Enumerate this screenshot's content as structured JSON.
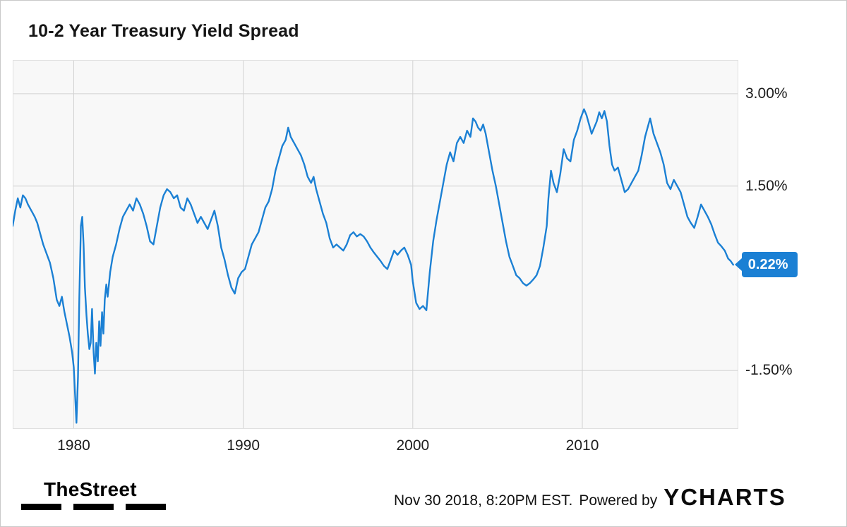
{
  "colors": {
    "accent": "#1b80d4"
  },
  "badge": {
    "label": "0.22%"
  },
  "footer": {
    "brand": "TheStreet",
    "timestamp": "Nov 30 2018, 8:20PM EST.",
    "powered_by": "Powered by",
    "provider": "YCHARTS"
  },
  "chart_data": {
    "type": "line",
    "title": "10-2 Year Treasury Yield Spread",
    "series_name": "10-2 Year Treasury Yield Spread",
    "line_color": "#1b80d4",
    "legend": "none",
    "grid": "on",
    "x_range": [
      1976.4,
      2019.2
    ],
    "y_range": [
      -2.45,
      3.55
    ],
    "x_ticks": [
      {
        "value": 1980,
        "label": "1980"
      },
      {
        "value": 1990,
        "label": "1990"
      },
      {
        "value": 2000,
        "label": "2000"
      },
      {
        "value": 2010,
        "label": "2010"
      }
    ],
    "y_ticks": [
      {
        "value": 3.0,
        "label": "3.00%"
      },
      {
        "value": 1.5,
        "label": "1.50%"
      },
      {
        "value": -1.5,
        "label": "-1.50%"
      }
    ],
    "last_value": 0.22,
    "points": [
      [
        1976.4,
        0.85
      ],
      [
        1976.55,
        1.1
      ],
      [
        1976.7,
        1.3
      ],
      [
        1976.85,
        1.15
      ],
      [
        1977.0,
        1.35
      ],
      [
        1977.15,
        1.3
      ],
      [
        1977.3,
        1.2
      ],
      [
        1977.5,
        1.1
      ],
      [
        1977.7,
        1.0
      ],
      [
        1977.85,
        0.9
      ],
      [
        1978.0,
        0.75
      ],
      [
        1978.2,
        0.55
      ],
      [
        1978.4,
        0.4
      ],
      [
        1978.6,
        0.25
      ],
      [
        1978.8,
        0.0
      ],
      [
        1979.0,
        -0.35
      ],
      [
        1979.15,
        -0.45
      ],
      [
        1979.3,
        -0.3
      ],
      [
        1979.45,
        -0.55
      ],
      [
        1979.6,
        -0.75
      ],
      [
        1979.75,
        -0.95
      ],
      [
        1979.9,
        -1.2
      ],
      [
        1980.0,
        -1.45
      ],
      [
        1980.08,
        -1.9
      ],
      [
        1980.16,
        -2.35
      ],
      [
        1980.25,
        -1.6
      ],
      [
        1980.33,
        -0.3
      ],
      [
        1980.42,
        0.85
      ],
      [
        1980.5,
        1.0
      ],
      [
        1980.58,
        0.55
      ],
      [
        1980.66,
        -0.15
      ],
      [
        1980.75,
        -0.6
      ],
      [
        1980.83,
        -0.9
      ],
      [
        1980.92,
        -1.15
      ],
      [
        1981.0,
        -1.05
      ],
      [
        1981.08,
        -0.5
      ],
      [
        1981.17,
        -1.2
      ],
      [
        1981.25,
        -1.55
      ],
      [
        1981.33,
        -1.05
      ],
      [
        1981.42,
        -1.35
      ],
      [
        1981.5,
        -0.7
      ],
      [
        1981.58,
        -1.1
      ],
      [
        1981.67,
        -0.55
      ],
      [
        1981.75,
        -0.9
      ],
      [
        1981.83,
        -0.35
      ],
      [
        1981.92,
        -0.1
      ],
      [
        1982.0,
        -0.3
      ],
      [
        1982.15,
        0.1
      ],
      [
        1982.3,
        0.35
      ],
      [
        1982.5,
        0.55
      ],
      [
        1982.7,
        0.8
      ],
      [
        1982.9,
        1.0
      ],
      [
        1983.1,
        1.1
      ],
      [
        1983.3,
        1.2
      ],
      [
        1983.5,
        1.1
      ],
      [
        1983.7,
        1.3
      ],
      [
        1983.9,
        1.2
      ],
      [
        1984.1,
        1.05
      ],
      [
        1984.3,
        0.85
      ],
      [
        1984.5,
        0.6
      ],
      [
        1984.7,
        0.55
      ],
      [
        1984.9,
        0.85
      ],
      [
        1985.1,
        1.15
      ],
      [
        1985.3,
        1.35
      ],
      [
        1985.5,
        1.45
      ],
      [
        1985.7,
        1.4
      ],
      [
        1985.9,
        1.3
      ],
      [
        1986.1,
        1.35
      ],
      [
        1986.3,
        1.15
      ],
      [
        1986.5,
        1.1
      ],
      [
        1986.7,
        1.3
      ],
      [
        1986.9,
        1.2
      ],
      [
        1987.1,
        1.05
      ],
      [
        1987.3,
        0.9
      ],
      [
        1987.5,
        1.0
      ],
      [
        1987.7,
        0.9
      ],
      [
        1987.9,
        0.8
      ],
      [
        1988.1,
        0.95
      ],
      [
        1988.3,
        1.1
      ],
      [
        1988.5,
        0.85
      ],
      [
        1988.7,
        0.5
      ],
      [
        1988.9,
        0.3
      ],
      [
        1989.1,
        0.05
      ],
      [
        1989.3,
        -0.15
      ],
      [
        1989.5,
        -0.25
      ],
      [
        1989.7,
        0.0
      ],
      [
        1989.9,
        0.1
      ],
      [
        1990.1,
        0.15
      ],
      [
        1990.3,
        0.35
      ],
      [
        1990.5,
        0.55
      ],
      [
        1990.7,
        0.65
      ],
      [
        1990.9,
        0.75
      ],
      [
        1991.1,
        0.95
      ],
      [
        1991.3,
        1.15
      ],
      [
        1991.5,
        1.25
      ],
      [
        1991.7,
        1.45
      ],
      [
        1991.9,
        1.75
      ],
      [
        1992.1,
        1.95
      ],
      [
        1992.3,
        2.15
      ],
      [
        1992.5,
        2.25
      ],
      [
        1992.65,
        2.45
      ],
      [
        1992.8,
        2.3
      ],
      [
        1993.0,
        2.2
      ],
      [
        1993.2,
        2.1
      ],
      [
        1993.4,
        2.0
      ],
      [
        1993.6,
        1.85
      ],
      [
        1993.8,
        1.65
      ],
      [
        1994.0,
        1.55
      ],
      [
        1994.15,
        1.65
      ],
      [
        1994.3,
        1.45
      ],
      [
        1994.5,
        1.25
      ],
      [
        1994.7,
        1.05
      ],
      [
        1994.9,
        0.9
      ],
      [
        1995.1,
        0.65
      ],
      [
        1995.3,
        0.5
      ],
      [
        1995.5,
        0.55
      ],
      [
        1995.7,
        0.5
      ],
      [
        1995.9,
        0.45
      ],
      [
        1996.1,
        0.55
      ],
      [
        1996.3,
        0.7
      ],
      [
        1996.5,
        0.75
      ],
      [
        1996.7,
        0.68
      ],
      [
        1996.9,
        0.72
      ],
      [
        1997.1,
        0.68
      ],
      [
        1997.3,
        0.6
      ],
      [
        1997.5,
        0.5
      ],
      [
        1997.7,
        0.42
      ],
      [
        1997.9,
        0.35
      ],
      [
        1998.1,
        0.28
      ],
      [
        1998.3,
        0.2
      ],
      [
        1998.5,
        0.15
      ],
      [
        1998.7,
        0.3
      ],
      [
        1998.9,
        0.45
      ],
      [
        1999.1,
        0.38
      ],
      [
        1999.3,
        0.45
      ],
      [
        1999.5,
        0.5
      ],
      [
        1999.7,
        0.38
      ],
      [
        1999.9,
        0.22
      ],
      [
        2000.0,
        -0.05
      ],
      [
        2000.2,
        -0.4
      ],
      [
        2000.4,
        -0.5
      ],
      [
        2000.6,
        -0.45
      ],
      [
        2000.8,
        -0.52
      ],
      [
        2001.0,
        0.1
      ],
      [
        2001.2,
        0.6
      ],
      [
        2001.4,
        0.95
      ],
      [
        2001.6,
        1.25
      ],
      [
        2001.8,
        1.55
      ],
      [
        2002.0,
        1.85
      ],
      [
        2002.2,
        2.05
      ],
      [
        2002.4,
        1.9
      ],
      [
        2002.6,
        2.2
      ],
      [
        2002.8,
        2.3
      ],
      [
        2003.0,
        2.2
      ],
      [
        2003.2,
        2.4
      ],
      [
        2003.4,
        2.3
      ],
      [
        2003.55,
        2.6
      ],
      [
        2003.7,
        2.55
      ],
      [
        2003.85,
        2.45
      ],
      [
        2004.0,
        2.4
      ],
      [
        2004.15,
        2.5
      ],
      [
        2004.3,
        2.35
      ],
      [
        2004.5,
        2.05
      ],
      [
        2004.7,
        1.75
      ],
      [
        2004.9,
        1.5
      ],
      [
        2005.1,
        1.2
      ],
      [
        2005.3,
        0.9
      ],
      [
        2005.5,
        0.6
      ],
      [
        2005.7,
        0.35
      ],
      [
        2005.9,
        0.2
      ],
      [
        2006.1,
        0.05
      ],
      [
        2006.3,
        0.0
      ],
      [
        2006.5,
        -0.08
      ],
      [
        2006.7,
        -0.12
      ],
      [
        2006.9,
        -0.08
      ],
      [
        2007.1,
        -0.02
      ],
      [
        2007.3,
        0.05
      ],
      [
        2007.5,
        0.2
      ],
      [
        2007.7,
        0.5
      ],
      [
        2007.9,
        0.85
      ],
      [
        2008.0,
        1.3
      ],
      [
        2008.15,
        1.75
      ],
      [
        2008.3,
        1.55
      ],
      [
        2008.5,
        1.4
      ],
      [
        2008.7,
        1.7
      ],
      [
        2008.9,
        2.1
      ],
      [
        2009.1,
        1.95
      ],
      [
        2009.3,
        1.9
      ],
      [
        2009.5,
        2.25
      ],
      [
        2009.7,
        2.4
      ],
      [
        2009.9,
        2.6
      ],
      [
        2010.1,
        2.75
      ],
      [
        2010.25,
        2.65
      ],
      [
        2010.4,
        2.5
      ],
      [
        2010.55,
        2.35
      ],
      [
        2010.7,
        2.45
      ],
      [
        2010.85,
        2.55
      ],
      [
        2011.0,
        2.7
      ],
      [
        2011.15,
        2.6
      ],
      [
        2011.3,
        2.72
      ],
      [
        2011.45,
        2.55
      ],
      [
        2011.6,
        2.15
      ],
      [
        2011.75,
        1.85
      ],
      [
        2011.9,
        1.75
      ],
      [
        2012.1,
        1.8
      ],
      [
        2012.3,
        1.6
      ],
      [
        2012.5,
        1.4
      ],
      [
        2012.7,
        1.45
      ],
      [
        2012.9,
        1.55
      ],
      [
        2013.1,
        1.65
      ],
      [
        2013.3,
        1.75
      ],
      [
        2013.5,
        2.0
      ],
      [
        2013.7,
        2.3
      ],
      [
        2013.9,
        2.5
      ],
      [
        2014.0,
        2.6
      ],
      [
        2014.2,
        2.35
      ],
      [
        2014.4,
        2.2
      ],
      [
        2014.6,
        2.05
      ],
      [
        2014.8,
        1.85
      ],
      [
        2015.0,
        1.55
      ],
      [
        2015.2,
        1.45
      ],
      [
        2015.4,
        1.6
      ],
      [
        2015.6,
        1.5
      ],
      [
        2015.8,
        1.4
      ],
      [
        2016.0,
        1.2
      ],
      [
        2016.2,
        1.0
      ],
      [
        2016.4,
        0.9
      ],
      [
        2016.6,
        0.82
      ],
      [
        2016.8,
        1.0
      ],
      [
        2017.0,
        1.2
      ],
      [
        2017.2,
        1.1
      ],
      [
        2017.4,
        1.0
      ],
      [
        2017.6,
        0.88
      ],
      [
        2017.8,
        0.72
      ],
      [
        2018.0,
        0.58
      ],
      [
        2018.2,
        0.52
      ],
      [
        2018.4,
        0.45
      ],
      [
        2018.6,
        0.32
      ],
      [
        2018.75,
        0.28
      ],
      [
        2018.9,
        0.22
      ]
    ]
  }
}
